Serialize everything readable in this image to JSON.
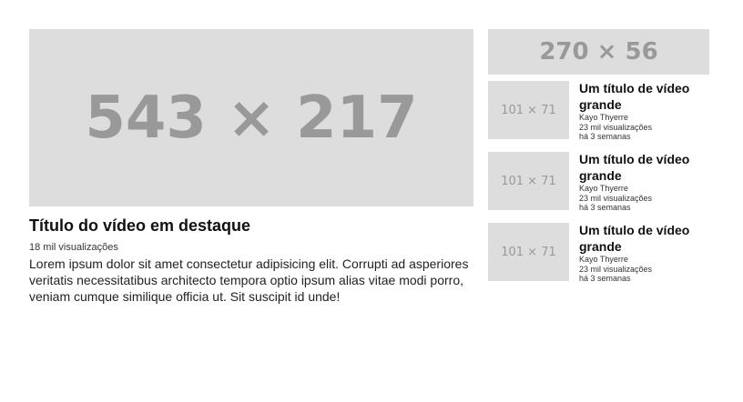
{
  "featured": {
    "thumbnail_label": "543 × 217",
    "title": "Título do vídeo em destaque",
    "views": "18 mil visualizações",
    "description": "Lorem ipsum dolor sit amet consectetur adipisicing elit. Corrupti ad asperiores veritatis necessitatibus architecto tempora optio ipsum alias vitae modi porro, veniam cumque similique officia ut. Sit suscipit id unde!"
  },
  "sidebar": {
    "banner_label": "270 × 56",
    "videos": [
      {
        "thumbnail_label": "101 × 71",
        "title": "Um título de vídeo grande",
        "channel": "Kayo Thyerre",
        "views": "23 mil visualizações",
        "age": "há 3 semanas"
      },
      {
        "thumbnail_label": "101 × 71",
        "title": "Um título de vídeo grande",
        "channel": "Kayo Thyerre",
        "views": "23 mil visualizações",
        "age": "há 3 semanas"
      },
      {
        "thumbnail_label": "101 × 71",
        "title": "Um título de vídeo grande",
        "channel": "Kayo Thyerre",
        "views": "23 mil visualizações",
        "age": "há 3 semanas"
      }
    ]
  },
  "colors": {
    "placeholder_bg": "#dddddd",
    "placeholder_text": "#999999"
  }
}
